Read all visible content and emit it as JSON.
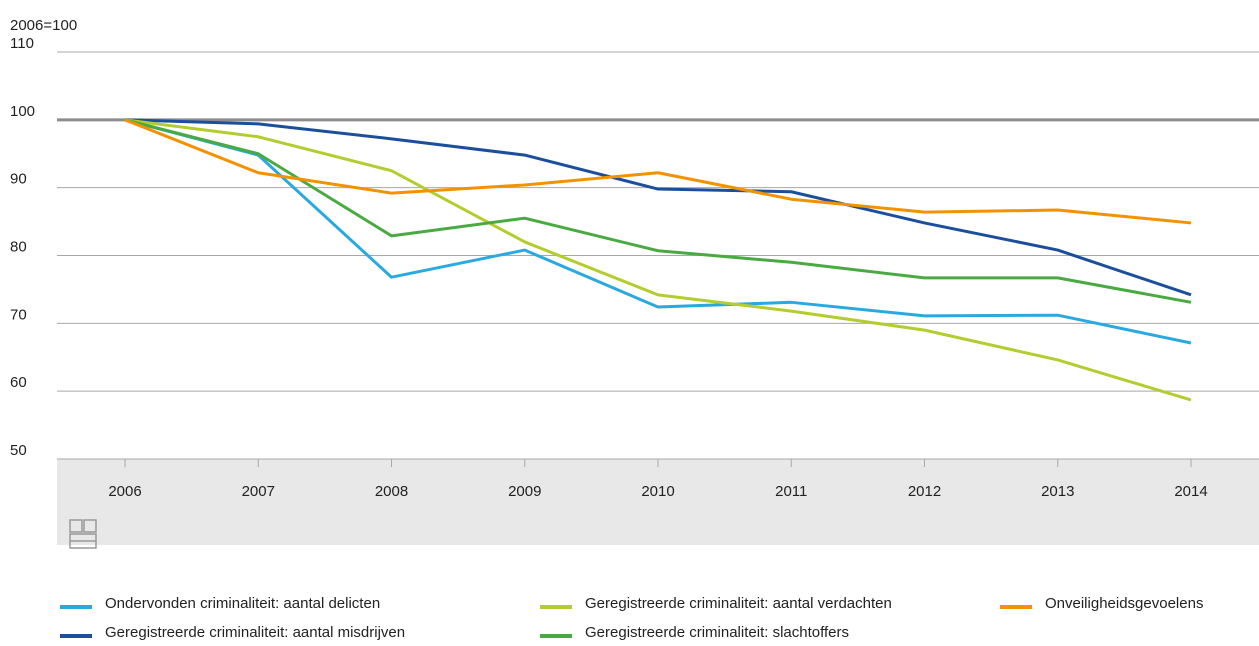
{
  "chart_data": {
    "type": "line",
    "y_axis_label": "2006=100",
    "categories": [
      "2006",
      "2007",
      "2008",
      "2009",
      "2010",
      "2011",
      "2012",
      "2013",
      "2014"
    ],
    "series": [
      {
        "name": "Ondervonden criminaliteit: aantal delicten",
        "color": "#2aa9e0",
        "values": [
          100,
          94.8,
          76.8,
          80.8,
          72.4,
          73.1,
          71.1,
          71.2,
          67.1
        ]
      },
      {
        "name": "Geregistreerde criminaliteit: aantal misdrijven",
        "color": "#1b4f9c",
        "values": [
          100,
          99.4,
          97.2,
          94.8,
          89.8,
          89.4,
          84.8,
          80.8,
          74.2
        ]
      },
      {
        "name": "Geregistreerde criminaliteit: aantal verdachten",
        "color": "#b5cc2e",
        "values": [
          100,
          97.5,
          92.5,
          82,
          74.2,
          71.8,
          69,
          64.6,
          58.7
        ]
      },
      {
        "name": "Geregistreerde criminaliteit: slachtoffers",
        "color": "#4aaa42",
        "values": [
          100,
          95,
          82.9,
          85.5,
          80.7,
          79,
          76.7,
          76.7,
          73.1
        ]
      },
      {
        "name": "Onveiligheidsgevoelens",
        "color": "#f39200",
        "values": [
          100,
          92.2,
          89.2,
          90.4,
          92.2,
          88.3,
          86.4,
          86.7,
          84.8
        ]
      }
    ],
    "ylim": [
      50,
      110
    ],
    "yticks": [
      50,
      60,
      70,
      80,
      90,
      100,
      110
    ],
    "reference_line": 100,
    "grid": true
  }
}
